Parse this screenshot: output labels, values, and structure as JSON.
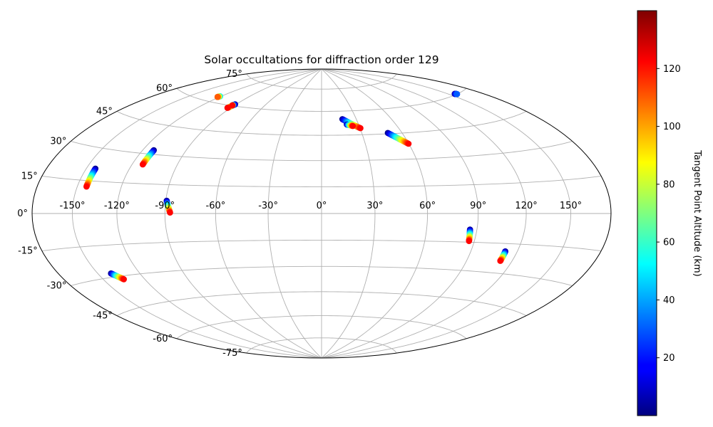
{
  "chart_data": {
    "type": "scatter",
    "title": "Solar occultations for diffraction order 129",
    "projection": "hammer",
    "grid": true,
    "lon_ticks": [
      {
        "value": -150,
        "label": "-150°"
      },
      {
        "value": -120,
        "label": "-120°"
      },
      {
        "value": -90,
        "label": "-90°"
      },
      {
        "value": -60,
        "label": "-60°"
      },
      {
        "value": -30,
        "label": "-30°"
      },
      {
        "value": 0,
        "label": "0°"
      },
      {
        "value": 30,
        "label": "30°"
      },
      {
        "value": 60,
        "label": "60°"
      },
      {
        "value": 90,
        "label": "90°"
      },
      {
        "value": 120,
        "label": "120°"
      },
      {
        "value": 150,
        "label": "150°"
      }
    ],
    "lat_ticks": [
      {
        "value": 75,
        "label": "75°"
      },
      {
        "value": 60,
        "label": "60°"
      },
      {
        "value": 45,
        "label": "45°"
      },
      {
        "value": 30,
        "label": "30°"
      },
      {
        "value": 15,
        "label": "15°"
      },
      {
        "value": 0,
        "label": "0°"
      },
      {
        "value": -15,
        "label": "-15°"
      },
      {
        "value": -30,
        "label": "-30°"
      },
      {
        "value": -45,
        "label": "-45°"
      },
      {
        "value": -60,
        "label": "-60°"
      },
      {
        "value": -75,
        "label": "-75°"
      }
    ],
    "colorbar": {
      "label": "Tangent Point Altitude (km)",
      "min": 0,
      "max": 140,
      "colormap": "jet",
      "ticks": [
        {
          "value": 20,
          "label": "20"
        },
        {
          "value": 40,
          "label": "40"
        },
        {
          "value": 60,
          "label": "60"
        },
        {
          "value": 80,
          "label": "80"
        },
        {
          "value": 100,
          "label": "100"
        },
        {
          "value": 120,
          "label": "120"
        }
      ]
    },
    "tracks": [
      {
        "start": {
          "lon": -143.5,
          "lat": 20.7,
          "alt": 2
        },
        "end": {
          "lon": -143.5,
          "lat": 12.3,
          "alt": 122
        }
      },
      {
        "start": {
          "lon": -112.2,
          "lat": 32.1,
          "alt": 2
        },
        "end": {
          "lon": -112.8,
          "lat": 24.6,
          "alt": 122
        }
      },
      {
        "start": {
          "lon": -91.0,
          "lat": 61.0,
          "alt": 2
        },
        "end": {
          "lon": -93.0,
          "lat": 58.5,
          "alt": 122
        }
      },
      {
        "start": {
          "lon": -92.0,
          "lat": 60.5,
          "alt": 2
        },
        "end": {
          "lon": -92.0,
          "lat": 60.2,
          "alt": 122
        }
      },
      {
        "start": {
          "lon": -121.0,
          "lat": 63.6,
          "alt": 45
        },
        "end": {
          "lon": -122.0,
          "lat": 63.0,
          "alt": 110
        }
      },
      {
        "start": {
          "lon": -89.4,
          "lat": 6.6,
          "alt": 2
        },
        "end": {
          "lon": -86.9,
          "lat": 0.5,
          "alt": 122
        }
      },
      {
        "start": {
          "lon": -140.3,
          "lat": -28.2,
          "alt": 2
        },
        "end": {
          "lon": -134.9,
          "lat": -31.6,
          "alt": 122
        }
      },
      {
        "start": {
          "lon": 18.0,
          "lat": 54.9,
          "alt": 2
        },
        "end": {
          "lon": 30.3,
          "lat": 49.0,
          "alt": 122
        }
      },
      {
        "start": {
          "lon": 20.5,
          "lat": 51.5,
          "alt": 2
        },
        "end": {
          "lon": 25.0,
          "lat": 50.5,
          "alt": 122
        }
      },
      {
        "start": {
          "lon": 49.4,
          "lat": 45.5,
          "alt": 2
        },
        "end": {
          "lon": 59.8,
          "lat": 38.7,
          "alt": 122
        }
      },
      {
        "start": {
          "lon": 85.8,
          "lat": -8.4,
          "alt": 2
        },
        "end": {
          "lon": 86.7,
          "lat": -14.4,
          "alt": 122
        }
      },
      {
        "start": {
          "lon": 112.1,
          "lat": -18.9,
          "alt": 2
        },
        "end": {
          "lon": 112.1,
          "lat": -23.8,
          "alt": 122
        }
      },
      {
        "start": {
          "lon": 156.0,
          "lat": 60.4,
          "alt": 2
        },
        "end": {
          "lon": 157.5,
          "lat": 60.0,
          "alt": 30
        }
      }
    ]
  }
}
